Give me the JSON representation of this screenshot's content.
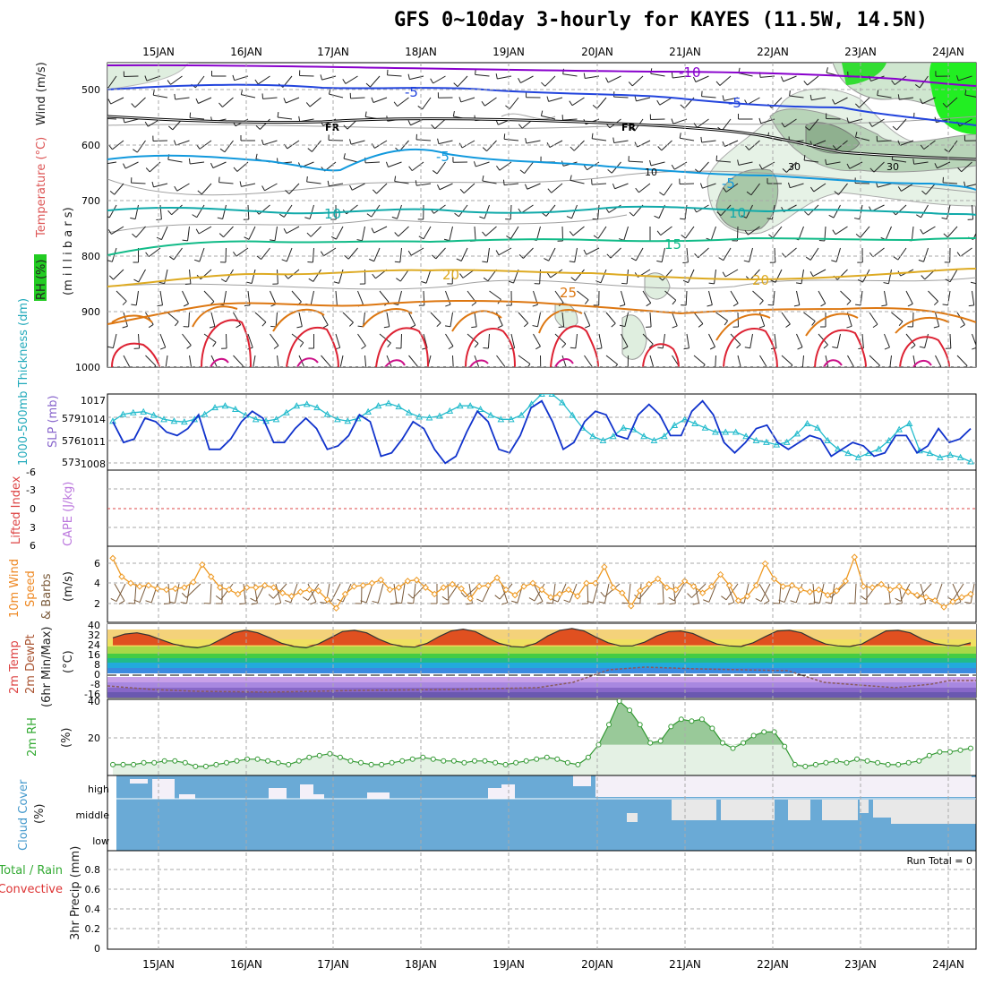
{
  "title": "GFS 0~10day 3-hourly for KAYES (11.5W, 14.5N)",
  "dates": [
    "15JAN",
    "16JAN",
    "17JAN",
    "18JAN",
    "19JAN",
    "20JAN",
    "21JAN",
    "22JAN",
    "23JAN",
    "24JAN"
  ],
  "colors": {
    "grid": "#aaaaaa",
    "rh_green": "#00dd00",
    "temp_purple": "#8800cc",
    "temp_blue": "#2244dd",
    "temp_lightblue": "#1199dd",
    "temp_teal": "#11aaaa",
    "temp_green": "#11bb88",
    "temp_gold": "#ddaa22",
    "temp_orange": "#dd7711",
    "temp_red": "#dd2233",
    "thickness": "#22bbcc",
    "slp": "#1133cc",
    "wind10": "#ee9922",
    "cloud": "#6aaad6",
    "rh2m": "#339933"
  },
  "panels": {
    "upper": {
      "ylabel_left1": "RH (%)",
      "ylabel_left2": "Temperature (°C)",
      "ylabel_left3": "Wind (m/s)",
      "ylabel_right": "(m i l l i b a r s)",
      "yticks": [
        "500",
        "600",
        "700",
        "800",
        "900",
        "1000"
      ],
      "contour_labels": [
        {
          "text": "-10",
          "color": "#8800cc"
        },
        {
          "text": "-5",
          "color": "#2244dd"
        },
        {
          "text": "-5",
          "color": "#2244dd"
        },
        {
          "text": "FR",
          "color": "#000000"
        },
        {
          "text": "FR",
          "color": "#000000"
        },
        {
          "text": "-5",
          "color": "#1199dd"
        },
        {
          "text": "-5",
          "color": "#1199dd"
        },
        {
          "text": "10",
          "color": "#11aaaa"
        },
        {
          "text": "10",
          "color": "#11aaaa"
        },
        {
          "text": "15",
          "color": "#11bb88"
        },
        {
          "text": "20",
          "color": "#ddaa22"
        },
        {
          "text": "20",
          "color": "#ddaa22"
        },
        {
          "text": "25",
          "color": "#dd7711"
        },
        {
          "text": "10",
          "color": "#888888"
        },
        {
          "text": "30",
          "color": "#888888"
        },
        {
          "text": "30",
          "color": "#888888"
        }
      ]
    },
    "slp": {
      "ylabel_left": "1000-500mb Thickness (dm)",
      "ylabel_right": "SLP (mb)",
      "yticks_left": [
        "579",
        "576",
        "573"
      ],
      "yticks_right": [
        "1017",
        "1014",
        "1011",
        "1008"
      ]
    },
    "cape": {
      "ylabel_left": "Lifted Index",
      "ylabel_right": "CAPE (J/kg)",
      "yticks": [
        "-6",
        "-3",
        "0",
        "3",
        "6"
      ]
    },
    "wind10": {
      "ylabel1": "10m Wind",
      "ylabel2": "Speed",
      "ylabel3": "& Barbs",
      "ylabel4": "(m/s)",
      "yticks": [
        "6",
        "4",
        "2"
      ]
    },
    "temp2m": {
      "ylabel1": "2m Temp",
      "ylabel2": "2m DewPt",
      "ylabel3": "(6hr Min/Max)",
      "ylabel4": "(°C)",
      "yticks": [
        "40",
        "32",
        "24",
        "16",
        "8",
        "0",
        "-8",
        "-16"
      ]
    },
    "rh2m": {
      "ylabel1": "2m RH",
      "ylabel2": "(%)",
      "yticks": [
        "40",
        "20"
      ]
    },
    "cloud": {
      "ylabel1": "Cloud Cover",
      "ylabel2": "(%)",
      "levels": [
        "high",
        "middle",
        "low"
      ]
    },
    "precip": {
      "ylabel1": "Total / Rain",
      "ylabel2": "Convective",
      "ylabel3": "3hr Precip (mm)",
      "yticks": [
        "0.8",
        "0.6",
        "0.4",
        "0.2",
        "0"
      ],
      "run_total": "Run Total = 0"
    }
  },
  "chart_data": [
    {
      "type": "line",
      "name": "SLP",
      "ylabel": "SLP (mb)",
      "ylim": [
        1007,
        1018
      ],
      "values": [
        1014.0,
        1011.0,
        1011.5,
        1014.5,
        1014.0,
        1012.5,
        1012.0,
        1013.0,
        1015.0,
        1010.0,
        1010.0,
        1011.5,
        1014.0,
        1015.5,
        1014.5,
        1011.0,
        1011.0,
        1013.0,
        1014.5,
        1013.0,
        1010.0,
        1010.5,
        1012.0,
        1015.0,
        1014.0,
        1009.0,
        1009.5,
        1011.5,
        1014.0,
        1013.0,
        1010.0,
        1008.0,
        1009.0,
        1012.5,
        1015.5,
        1014.0,
        1010.0,
        1009.5,
        1012.0,
        1016.0,
        1017.0,
        1014.0,
        1010.0,
        1011.0,
        1014.0,
        1015.5,
        1015.0,
        1012.0,
        1011.5,
        1015.0,
        1016.5,
        1015.0,
        1012.0,
        1012.0,
        1015.5,
        1017.0,
        1015.0,
        1011.0,
        1009.5,
        1011.0,
        1013.0,
        1013.5,
        1011.0,
        1010.0,
        1011.0,
        1012.0,
        1011.5,
        1009.0,
        1010.0,
        1011.0,
        1010.5,
        1009.0,
        1009.5,
        1012.0,
        1012.0,
        1009.5,
        1010.5,
        1013.0,
        1011.0,
        1011.5,
        1013.0
      ]
    },
    {
      "type": "line",
      "name": "Thickness",
      "ylabel": "1000-500mb Thickness (dm)",
      "ylim": [
        572,
        581
      ],
      "values": [
        577.8,
        578.6,
        578.8,
        578.9,
        578.5,
        578.0,
        577.8,
        577.7,
        578.0,
        578.6,
        579.4,
        579.6,
        579.2,
        578.5,
        578.0,
        577.8,
        578.0,
        578.8,
        579.6,
        579.8,
        579.4,
        578.6,
        578.0,
        577.8,
        578.1,
        578.9,
        579.6,
        579.9,
        579.5,
        578.8,
        578.3,
        578.2,
        578.4,
        579.0,
        579.6,
        579.6,
        579.2,
        578.5,
        578.0,
        578.0,
        578.5,
        579.8,
        581.0,
        581.0,
        580.0,
        578.5,
        577.0,
        576.0,
        575.5,
        576.0,
        577.0,
        576.8,
        576.0,
        575.5,
        576.0,
        577.3,
        578.0,
        577.5,
        577.0,
        576.5,
        576.5,
        576.5,
        576.0,
        575.5,
        575.3,
        575.0,
        575.3,
        576.3,
        577.5,
        577.0,
        575.5,
        574.5,
        574.0,
        573.5,
        574.0,
        574.5,
        575.5,
        576.8,
        577.5,
        574.3,
        574.0,
        573.5,
        573.8,
        573.5,
        573.0
      ]
    },
    {
      "type": "line",
      "name": "10m Wind Speed",
      "ylabel": "(m/s)",
      "ylim": [
        0,
        7
      ],
      "values": [
        5.9,
        4.2,
        3.6,
        3.3,
        3.4,
        3.1,
        3.0,
        3.1,
        3.2,
        3.7,
        5.3,
        4.2,
        3.2,
        3.0,
        2.6,
        3.2,
        3.2,
        3.4,
        3.2,
        2.7,
        2.4,
        2.8,
        3.0,
        2.9,
        2.1,
        1.3,
        2.6,
        3.3,
        3.4,
        3.6,
        3.9,
        3.0,
        3.2,
        3.8,
        3.9,
        3.2,
        2.6,
        3.2,
        3.5,
        3.1,
        2.2,
        3.3,
        3.4,
        4.1,
        3.0,
        2.5,
        3.3,
        3.6,
        3.0,
        2.3,
        2.6,
        3.0,
        2.4,
        3.6,
        3.6,
        5.1,
        3.2,
        2.7,
        1.5,
        2.9,
        3.5,
        4.0,
        3.2,
        3.0,
        3.8,
        3.3,
        2.7,
        3.3,
        4.4,
        3.4,
        2.0,
        2.4,
        3.4,
        5.4,
        4.0,
        3.3,
        3.4,
        3.0,
        2.8,
        3.0,
        2.5,
        2.9,
        3.8,
        6.0,
        3.3,
        3.2,
        3.5,
        3.0,
        3.3,
        2.8,
        2.5,
        2.3,
        2.0,
        1.4,
        1.9,
        2.3,
        2.6
      ]
    },
    {
      "type": "area",
      "name": "2m RH",
      "ylabel": "(%)",
      "ylim": [
        0,
        42
      ],
      "values": [
        6,
        6,
        6,
        7,
        7,
        8,
        8,
        7,
        5,
        5,
        6,
        7,
        8,
        9,
        9,
        8,
        7,
        6,
        8,
        10,
        11,
        12,
        10,
        8,
        7,
        6,
        6,
        7,
        8,
        9,
        10,
        9,
        8,
        8,
        7,
        8,
        8,
        7,
        6,
        7,
        8,
        9,
        10,
        9,
        7,
        6,
        10,
        17,
        28,
        41,
        36,
        28,
        18,
        19,
        27,
        31,
        30,
        31,
        26,
        18,
        15,
        18,
        22,
        24,
        24,
        16,
        6,
        5,
        6,
        7,
        8,
        7,
        9,
        8,
        7,
        6,
        6,
        7,
        8,
        11,
        13,
        13,
        14,
        15
      ]
    },
    {
      "type": "line",
      "name": "2m Temp",
      "ylabel": "(°C)",
      "ylim": [
        -18,
        41
      ],
      "values": [
        30.0,
        33.0,
        34.0,
        32.0,
        28.5,
        25.0,
        23.0,
        22.0,
        24.0,
        29.0,
        34.0,
        36.0,
        34.0,
        30.0,
        25.5,
        23.0,
        22.0,
        25.0,
        30.0,
        35.0,
        36.0,
        34.0,
        29.0,
        25.0,
        23.0,
        22.5,
        25.5,
        31.0,
        35.5,
        37.0,
        35.0,
        30.0,
        25.5,
        23.0,
        22.5,
        25.5,
        31.5,
        36.0,
        37.5,
        35.5,
        30.5,
        26.0,
        23.5,
        23.5,
        26.5,
        31.5,
        35.0,
        35.5,
        33.5,
        29.0,
        25.0,
        23.5,
        23.0,
        26.0,
        31.0,
        35.5,
        36.0,
        34.0,
        29.0,
        25.0,
        23.5,
        23.0,
        25.0,
        30.5,
        35.5,
        36.0,
        34.0,
        29.0,
        25.5,
        24.0,
        23.5,
        26.0
      ]
    }
  ]
}
